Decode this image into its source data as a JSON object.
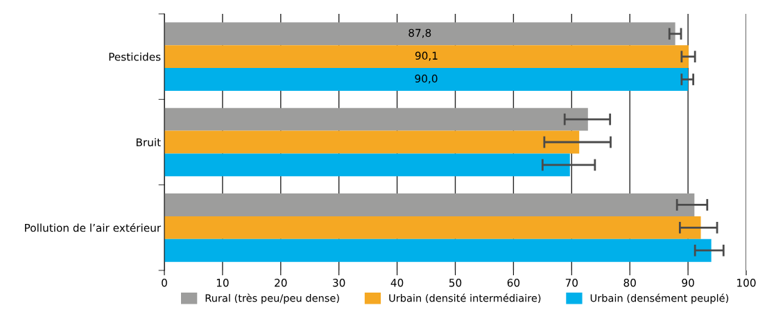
{
  "chart_data": {
    "type": "bar",
    "orientation": "horizontal",
    "categories": [
      "Pesticides",
      "Bruit",
      "Pollution de l’air extérieur"
    ],
    "series": [
      {
        "name": "Rural (très peu/peu dense)",
        "color": "#9d9d9c",
        "values": [
          87.8,
          72.8,
          91.1
        ],
        "errors": [
          [
            86.8,
            88.8
          ],
          [
            68.8,
            76.6
          ],
          [
            88.1,
            93.3
          ]
        ],
        "value_labels": [
          "87,8",
          null,
          null
        ]
      },
      {
        "name": "Urbain (densité intermédiaire)",
        "color": "#f5a823",
        "values": [
          90.1,
          71.3,
          92.2
        ],
        "errors": [
          [
            88.9,
            91.2
          ],
          [
            65.3,
            76.7
          ],
          [
            88.6,
            95.0
          ]
        ],
        "value_labels": [
          "90,1",
          null,
          null
        ]
      },
      {
        "name": "Urbain (densément peuplé)",
        "color": "#00b0ea",
        "values": [
          90.0,
          69.7,
          94.0
        ],
        "errors": [
          [
            88.9,
            90.9
          ],
          [
            65.0,
            74.0
          ],
          [
            91.2,
            96.1
          ]
        ],
        "value_labels": [
          "90,0",
          null,
          null
        ]
      }
    ],
    "xlim": [
      0,
      100
    ],
    "xticks": [
      0,
      10,
      20,
      30,
      40,
      50,
      60,
      70,
      80,
      90,
      100
    ],
    "grid": "x",
    "legend": "bottom"
  }
}
